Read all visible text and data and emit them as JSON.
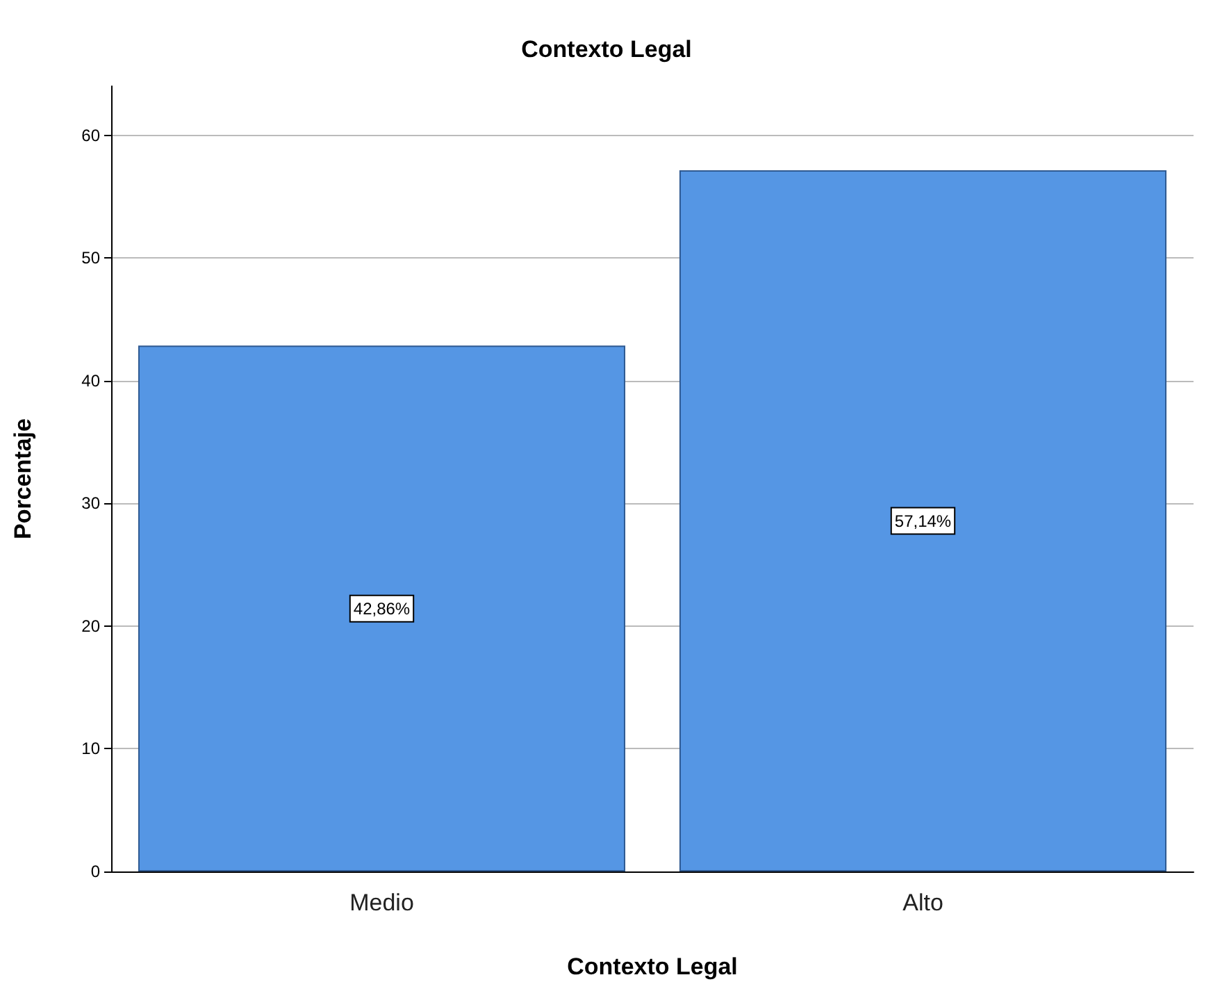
{
  "chart_data": {
    "type": "bar",
    "title": "Contexto Legal",
    "xlabel": "Contexto Legal",
    "ylabel": "Porcentaje",
    "categories": [
      "Medio",
      "Alto"
    ],
    "values": [
      42.86,
      57.14
    ],
    "value_labels": [
      "42,86%",
      "57,14%"
    ],
    "color": "#5596e4",
    "ylim": [
      0,
      64
    ],
    "yticks": [
      0,
      10,
      20,
      30,
      40,
      50,
      60
    ],
    "grid": "y"
  }
}
